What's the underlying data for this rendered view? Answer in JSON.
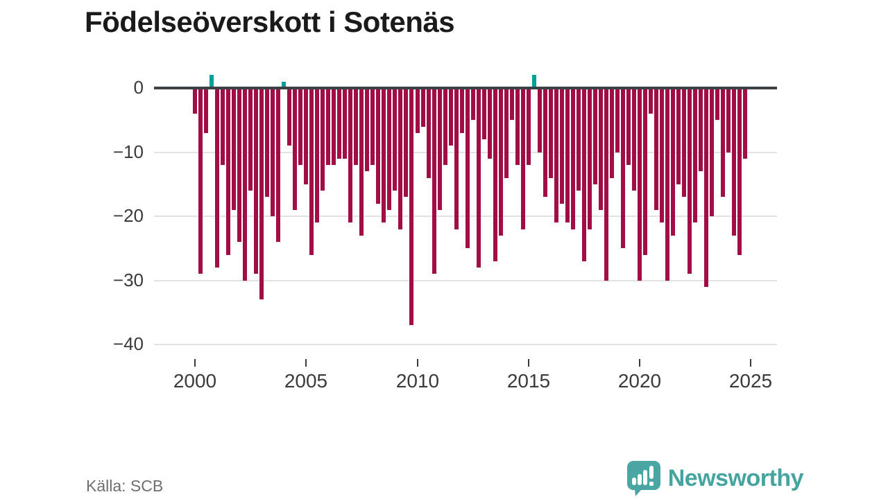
{
  "title": "Födelseöverskott i Sotenäs",
  "source_label": "Källa: SCB",
  "brand": {
    "name": "Newsworthy"
  },
  "chart_data": {
    "type": "bar",
    "title": "Födelseöverskott i Sotenäs",
    "xlabel": "",
    "ylabel": "",
    "unit": "persons per quarter",
    "x_start_year": 2000,
    "quarters_per_year": 4,
    "x_end": "2024 Q4",
    "values": [
      -4,
      -29,
      -7,
      2,
      -28,
      -12,
      -26,
      -19,
      -24,
      -30,
      -16,
      -29,
      -33,
      -17,
      -20,
      -24,
      1,
      -9,
      -19,
      -12,
      -15,
      -26,
      -21,
      -16,
      -12,
      -12,
      -11,
      -11,
      -21,
      -12,
      -23,
      -13,
      -12,
      -18,
      -21,
      -19,
      -16,
      -22,
      -17,
      -37,
      -7,
      -6,
      -14,
      -29,
      -19,
      -12,
      -9,
      -22,
      -7,
      -25,
      -5,
      -28,
      -8,
      -11,
      -27,
      -23,
      -14,
      -5,
      -12,
      -22,
      -12,
      2,
      -10,
      -17,
      -14,
      -21,
      -18,
      -21,
      -22,
      -16,
      -27,
      -22,
      -15,
      -19,
      -30,
      -14,
      -10,
      -25,
      -12,
      -16,
      -30,
      -26,
      -4,
      -19,
      -21,
      -30,
      -23,
      -15,
      -17,
      -29,
      -21,
      -13,
      -31,
      -20,
      -5,
      -17,
      -10,
      -23,
      -26,
      -11
    ],
    "xticks": [
      2000,
      2005,
      2010,
      2015,
      2020,
      2025
    ],
    "ytick_labels": [
      "0",
      "−10",
      "−20",
      "−30",
      "−40"
    ],
    "ylim": [
      -40,
      3
    ],
    "grid": "horizontal",
    "legend_position": "none",
    "bar_color_negative": "#a30d45",
    "bar_color_positive": "#00a099",
    "zero_line_color": "#3d4144",
    "grid_color": "#e2e2e2",
    "axis_text_color": "#3a3a3a"
  }
}
